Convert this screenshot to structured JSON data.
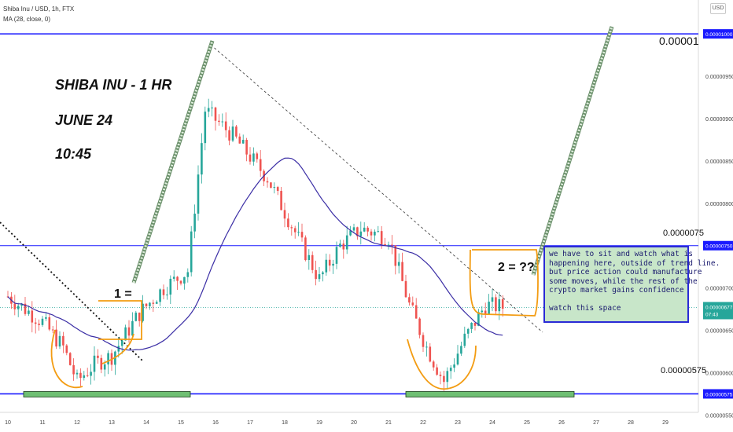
{
  "header": {
    "symbol_line": "Shiba Inu / USD, 1h, FTX",
    "indicator_line": "MA (28, close, 0)",
    "currency_button": "USD"
  },
  "annotations": {
    "title_lines": [
      "SHIBA INU - 1 HR",
      "JUNE 24",
      "10:45"
    ],
    "level_top_label": "0.00001",
    "level_mid_label": "0.0000075",
    "level_bottom_label": "0.00000575",
    "marker_1": "1 =",
    "marker_2": "2 = ??",
    "note_lines": [
      "we have to sit and watch what is",
      "happening here, outside of trend line.",
      "but price action could manufacture",
      "some moves, while the rest of the",
      "crypto market gains confidence",
      "",
      "watch this space"
    ],
    "last_price_time": "07:43"
  },
  "chart_data": {
    "type": "candlestick",
    "title": "Shiba Inu / USD, 1h, FTX",
    "x_ticks": [
      "10",
      "11",
      "12",
      "13",
      "14",
      "15",
      "16",
      "17",
      "18",
      "19",
      "20",
      "21",
      "22",
      "23",
      "24",
      "25",
      "26",
      "27",
      "28",
      "29"
    ],
    "y_ticks": [
      "0.00000950",
      "0.00000900",
      "0.00000850",
      "0.00000800",
      "0.00000700",
      "0.00000650",
      "0.00000600",
      "0.00000550"
    ],
    "ylim": [
      5.3e-06,
      1.04e-05
    ],
    "highlighted_levels": [
      {
        "label": "0.00001000",
        "value": 1e-05,
        "color": "#1a1aff"
      },
      {
        "label": "0.00000750",
        "value": 7.5e-06,
        "color": "#1a1aff"
      },
      {
        "label": "0.00000575",
        "value": 5.75e-06,
        "color": "#1a1aff"
      }
    ],
    "last_price": {
      "label": "0.00000677",
      "value": 6.77e-06,
      "color": "#26a69a"
    },
    "moving_average": {
      "name": "MA (28, close, 0)",
      "color": "#3b2ea5"
    },
    "price_path_by_day": [
      {
        "day": 10,
        "close": 6.9e-06
      },
      {
        "day": 11,
        "close": 6.6e-06
      },
      {
        "day": 11.6,
        "close": 6.3e-06
      },
      {
        "day": 12,
        "close": 5.9e-06
      },
      {
        "day": 12.5,
        "close": 6.1e-06
      },
      {
        "day": 13,
        "close": 6.2e-06
      },
      {
        "day": 13.8,
        "close": 6.7e-06
      },
      {
        "day": 14.5,
        "close": 7e-06
      },
      {
        "day": 15.2,
        "close": 7.2e-06
      },
      {
        "day": 15.7,
        "close": 9.1e-06
      },
      {
        "day": 16.5,
        "close": 8.8e-06
      },
      {
        "day": 17.5,
        "close": 8.3e-06
      },
      {
        "day": 18.5,
        "close": 7.5e-06
      },
      {
        "day": 19,
        "close": 7.1e-06
      },
      {
        "day": 19.6,
        "close": 7.5e-06
      },
      {
        "day": 20.2,
        "close": 7.7e-06
      },
      {
        "day": 21,
        "close": 7.6e-06
      },
      {
        "day": 21.6,
        "close": 6.8e-06
      },
      {
        "day": 22.1,
        "close": 6.3e-06
      },
      {
        "day": 22.6,
        "close": 5.9e-06
      },
      {
        "day": 23.2,
        "close": 6.4e-06
      },
      {
        "day": 23.8,
        "close": 6.8e-06
      },
      {
        "day": 24.4,
        "close": 6.77e-06
      }
    ]
  }
}
